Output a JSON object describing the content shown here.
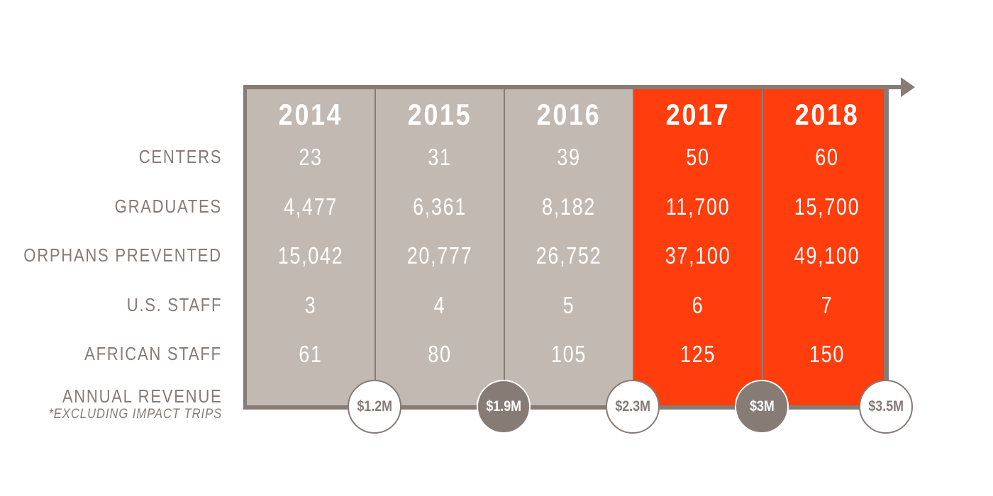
{
  "chart_data": {
    "type": "table",
    "title": "",
    "years": [
      "2014",
      "2015",
      "2016",
      "2017",
      "2018"
    ],
    "rows": [
      {
        "label": "CENTERS",
        "values": [
          "23",
          "31",
          "39",
          "50",
          "60"
        ]
      },
      {
        "label": "GRADUATES",
        "values": [
          "4,477",
          "6,361",
          "8,182",
          "11,700",
          "15,700"
        ]
      },
      {
        "label": "ORPHANS PREVENTED",
        "values": [
          "15,042",
          "20,777",
          "26,752",
          "37,100",
          "49,100"
        ]
      },
      {
        "label": "U.S. STAFF",
        "values": [
          "3",
          "4",
          "5",
          "6",
          "7"
        ]
      },
      {
        "label": "AFRICAN STAFF",
        "values": [
          "61",
          "80",
          "105",
          "125",
          "150"
        ]
      }
    ],
    "revenue": {
      "label": "ANNUAL REVENUE",
      "note": "*EXCLUDING IMPACT TRIPS",
      "values": [
        "$1.2M",
        "$1.9M",
        "$2.3M",
        "$3M",
        "$3.5M"
      ],
      "styles": [
        "light",
        "dark",
        "light",
        "dark",
        "light"
      ]
    },
    "highlighted_years": [
      "2017",
      "2018"
    ],
    "colors": {
      "past_column": "#c2b9b3",
      "future_column": "#ff3d0d",
      "frame": "#877b76",
      "text_on_column": "#ffffff"
    }
  }
}
